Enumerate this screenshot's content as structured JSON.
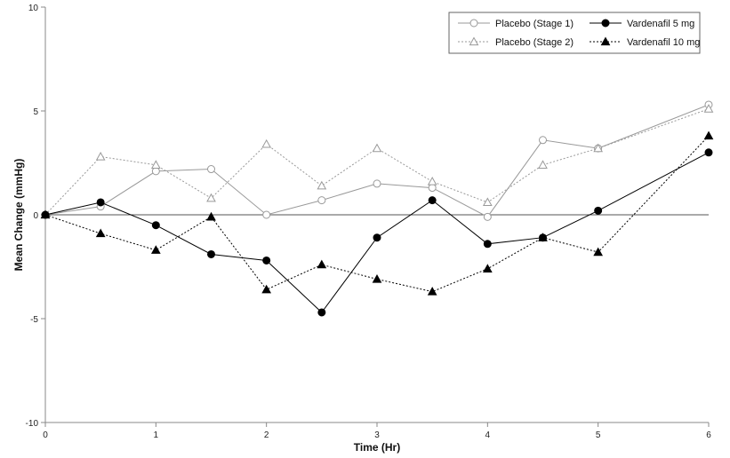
{
  "chart_data": {
    "type": "line",
    "xlabel": "Time (Hr)",
    "ylabel": "Mean Change (mmHg)",
    "xlim": [
      0,
      6
    ],
    "ylim": [
      -10,
      10
    ],
    "x_ticks": [
      0,
      1,
      2,
      3,
      4,
      5,
      6
    ],
    "y_ticks": [
      -10,
      -5,
      0,
      5,
      10
    ],
    "x_tick_labels": [
      "0",
      "1",
      "2",
      "3",
      "4",
      "5",
      "6"
    ],
    "y_tick_labels": [
      "-10",
      "-5",
      "0",
      "5",
      "10"
    ],
    "grid": false,
    "zero_line": true,
    "legend_position": "top-right",
    "x": [
      0,
      0.5,
      1,
      1.5,
      2,
      2.5,
      3,
      3.5,
      4,
      4.5,
      5,
      6
    ],
    "series": [
      {
        "name": "Placebo (Stage 1)",
        "marker": "circle-open",
        "line": "solid",
        "color": "#999999",
        "values": [
          0,
          0.4,
          2.1,
          2.2,
          0,
          0.7,
          1.5,
          1.3,
          -0.1,
          3.6,
          3.2,
          5.3
        ]
      },
      {
        "name": "Placebo (Stage 2)",
        "marker": "triangle-open",
        "line": "dotted",
        "color": "#999999",
        "values": [
          0,
          2.8,
          2.4,
          0.8,
          3.4,
          1.4,
          3.2,
          1.6,
          0.6,
          2.4,
          3.2,
          5.1
        ]
      },
      {
        "name": "Vardenafil 5 mg",
        "marker": "circle-filled",
        "line": "solid",
        "color": "#000000",
        "values": [
          0,
          0.6,
          -0.5,
          -1.9,
          -2.2,
          -4.7,
          -1.1,
          0.7,
          -1.4,
          -1.1,
          0.2,
          3.0
        ]
      },
      {
        "name": "Vardenafil 10 mg",
        "marker": "triangle-filled",
        "line": "dotted",
        "color": "#000000",
        "values": [
          0,
          -0.9,
          -1.7,
          -0.1,
          -3.6,
          -2.4,
          -3.1,
          -3.7,
          -2.6,
          -1.1,
          -1.8,
          3.8
        ]
      }
    ]
  }
}
